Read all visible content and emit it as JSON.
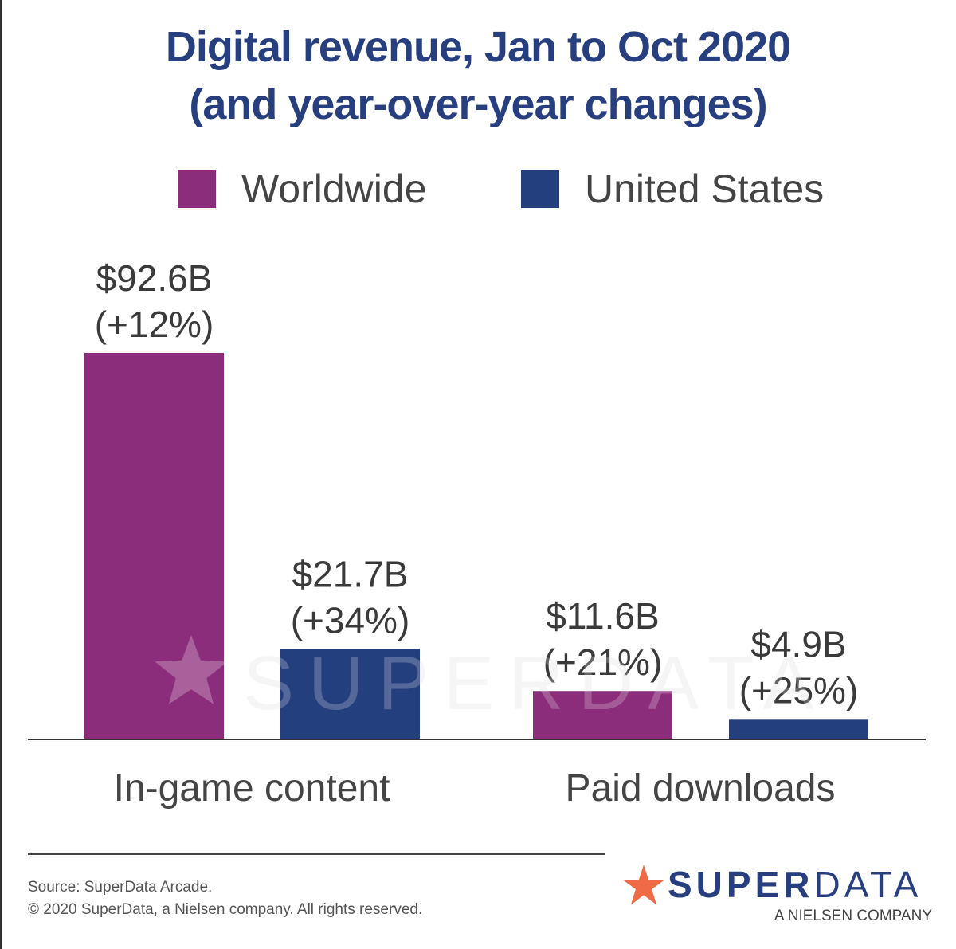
{
  "title_line1": "Digital revenue, Jan to Oct 2020",
  "title_line2": "(and year-over-year changes)",
  "colors": {
    "worldwide": "#8b2d7a",
    "united_states": "#243f7d",
    "title": "#273f7e",
    "logo_star": "#ef6a45"
  },
  "legend": [
    {
      "label": "Worldwide",
      "color": "#8b2d7a"
    },
    {
      "label": "United States",
      "color": "#243f7d"
    }
  ],
  "chart_data": {
    "type": "bar",
    "title": "Digital revenue, Jan to Oct 2020 (and year-over-year changes)",
    "categories": [
      "In-game content",
      "Paid downloads"
    ],
    "series": [
      {
        "name": "Worldwide",
        "values": [
          92.6,
          11.6
        ],
        "labels": [
          "$92.6B",
          "$11.6B"
        ],
        "changes": [
          "(+12%)",
          "(+21%)"
        ]
      },
      {
        "name": "United States",
        "values": [
          21.7,
          4.9
        ],
        "labels": [
          "$21.7B",
          "$4.9B"
        ],
        "changes": [
          "(+34%)",
          "(+25%)"
        ]
      }
    ],
    "units": "USD billions",
    "xlabel": "",
    "ylabel": "",
    "ylim": [
      0,
      92.6
    ],
    "grid": false,
    "legend_position": "top-center"
  },
  "watermark": "SUPERDATA",
  "footer": {
    "source": "Source: SuperData Arcade.",
    "copyright": "© 2020 SuperData, a Nielsen company. All rights reserved."
  },
  "logo": {
    "bold": "SUPER",
    "light": "DATA",
    "sub": "A NIELSEN COMPANY"
  }
}
